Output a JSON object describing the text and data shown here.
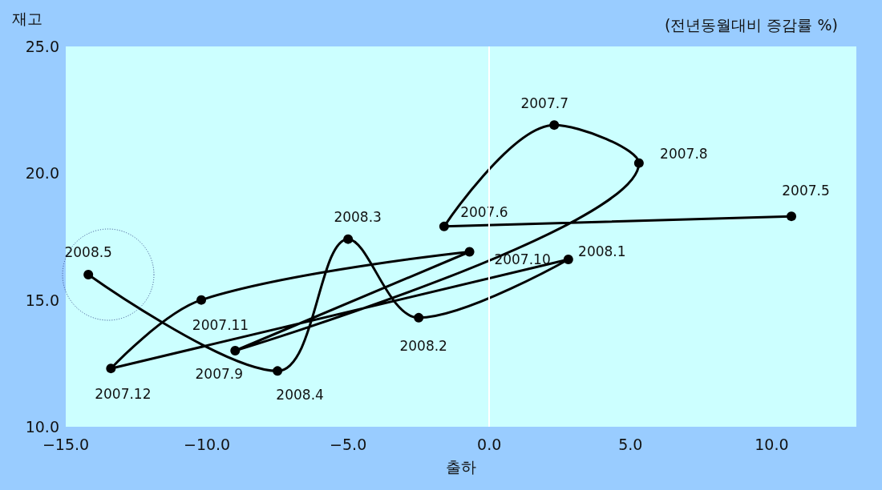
{
  "chart_data": {
    "type": "line",
    "title": "(전년동월대비 증감률 %)",
    "xlabel": "출하",
    "ylabel": "재고",
    "x": [
      10.7,
      -1.6,
      2.3,
      5.3,
      -9.0,
      -0.7,
      -10.2,
      -13.4,
      2.8,
      -2.5,
      -5.0,
      -7.5,
      -14.2
    ],
    "series": [
      {
        "color": "#000000",
        "values": [
          18.3,
          17.9,
          21.9,
          20.4,
          13.0,
          16.9,
          15.0,
          12.3,
          16.6,
          14.3,
          17.4,
          12.2,
          16.0
        ]
      }
    ],
    "annotations": [
      {
        "text": "2007.5",
        "x": 10.7,
        "y": 18.3
      },
      {
        "text": "2007.6",
        "x": -1.6,
        "y": 17.9
      },
      {
        "text": "2007.7",
        "x": 2.3,
        "y": 21.9
      },
      {
        "text": "2007.8",
        "x": 5.3,
        "y": 20.4
      },
      {
        "text": "2007.9",
        "x": -9.0,
        "y": 13.0
      },
      {
        "text": "2007.10",
        "x": -0.7,
        "y": 16.9
      },
      {
        "text": "2007.11",
        "x": -10.2,
        "y": 15.0
      },
      {
        "text": "2007.12",
        "x": -13.4,
        "y": 12.3
      },
      {
        "text": "2008.1",
        "x": 2.8,
        "y": 16.6
      },
      {
        "text": "2008.2",
        "x": -2.5,
        "y": 14.3
      },
      {
        "text": "2008.3",
        "x": -5.0,
        "y": 17.4
      },
      {
        "text": "2008.4",
        "x": -7.5,
        "y": 12.2
      },
      {
        "text": "2008.5",
        "x": -14.2,
        "y": 16.0
      }
    ],
    "xlim": [
      -15,
      13
    ],
    "xticks": [
      {
        "value": -15,
        "label": "−15.0"
      },
      {
        "value": -10,
        "label": "−10.0"
      },
      {
        "value": -5,
        "label": "−5.0"
      },
      {
        "value": 0,
        "label": "0.0"
      },
      {
        "value": 5,
        "label": "5.0"
      },
      {
        "value": 10,
        "label": "10.0"
      }
    ],
    "ylim": [
      10,
      25
    ],
    "yticks": [
      {
        "value": 10,
        "label": "10.0"
      },
      {
        "value": 15,
        "label": "15.0"
      },
      {
        "value": 20,
        "label": "20.0"
      },
      {
        "value": 25,
        "label": "25.0"
      }
    ],
    "ref_lines": [
      {
        "axis": "x",
        "value": 0,
        "color": "#ffffff"
      }
    ],
    "grid": false,
    "marker": "circle",
    "line_style": "solid"
  }
}
